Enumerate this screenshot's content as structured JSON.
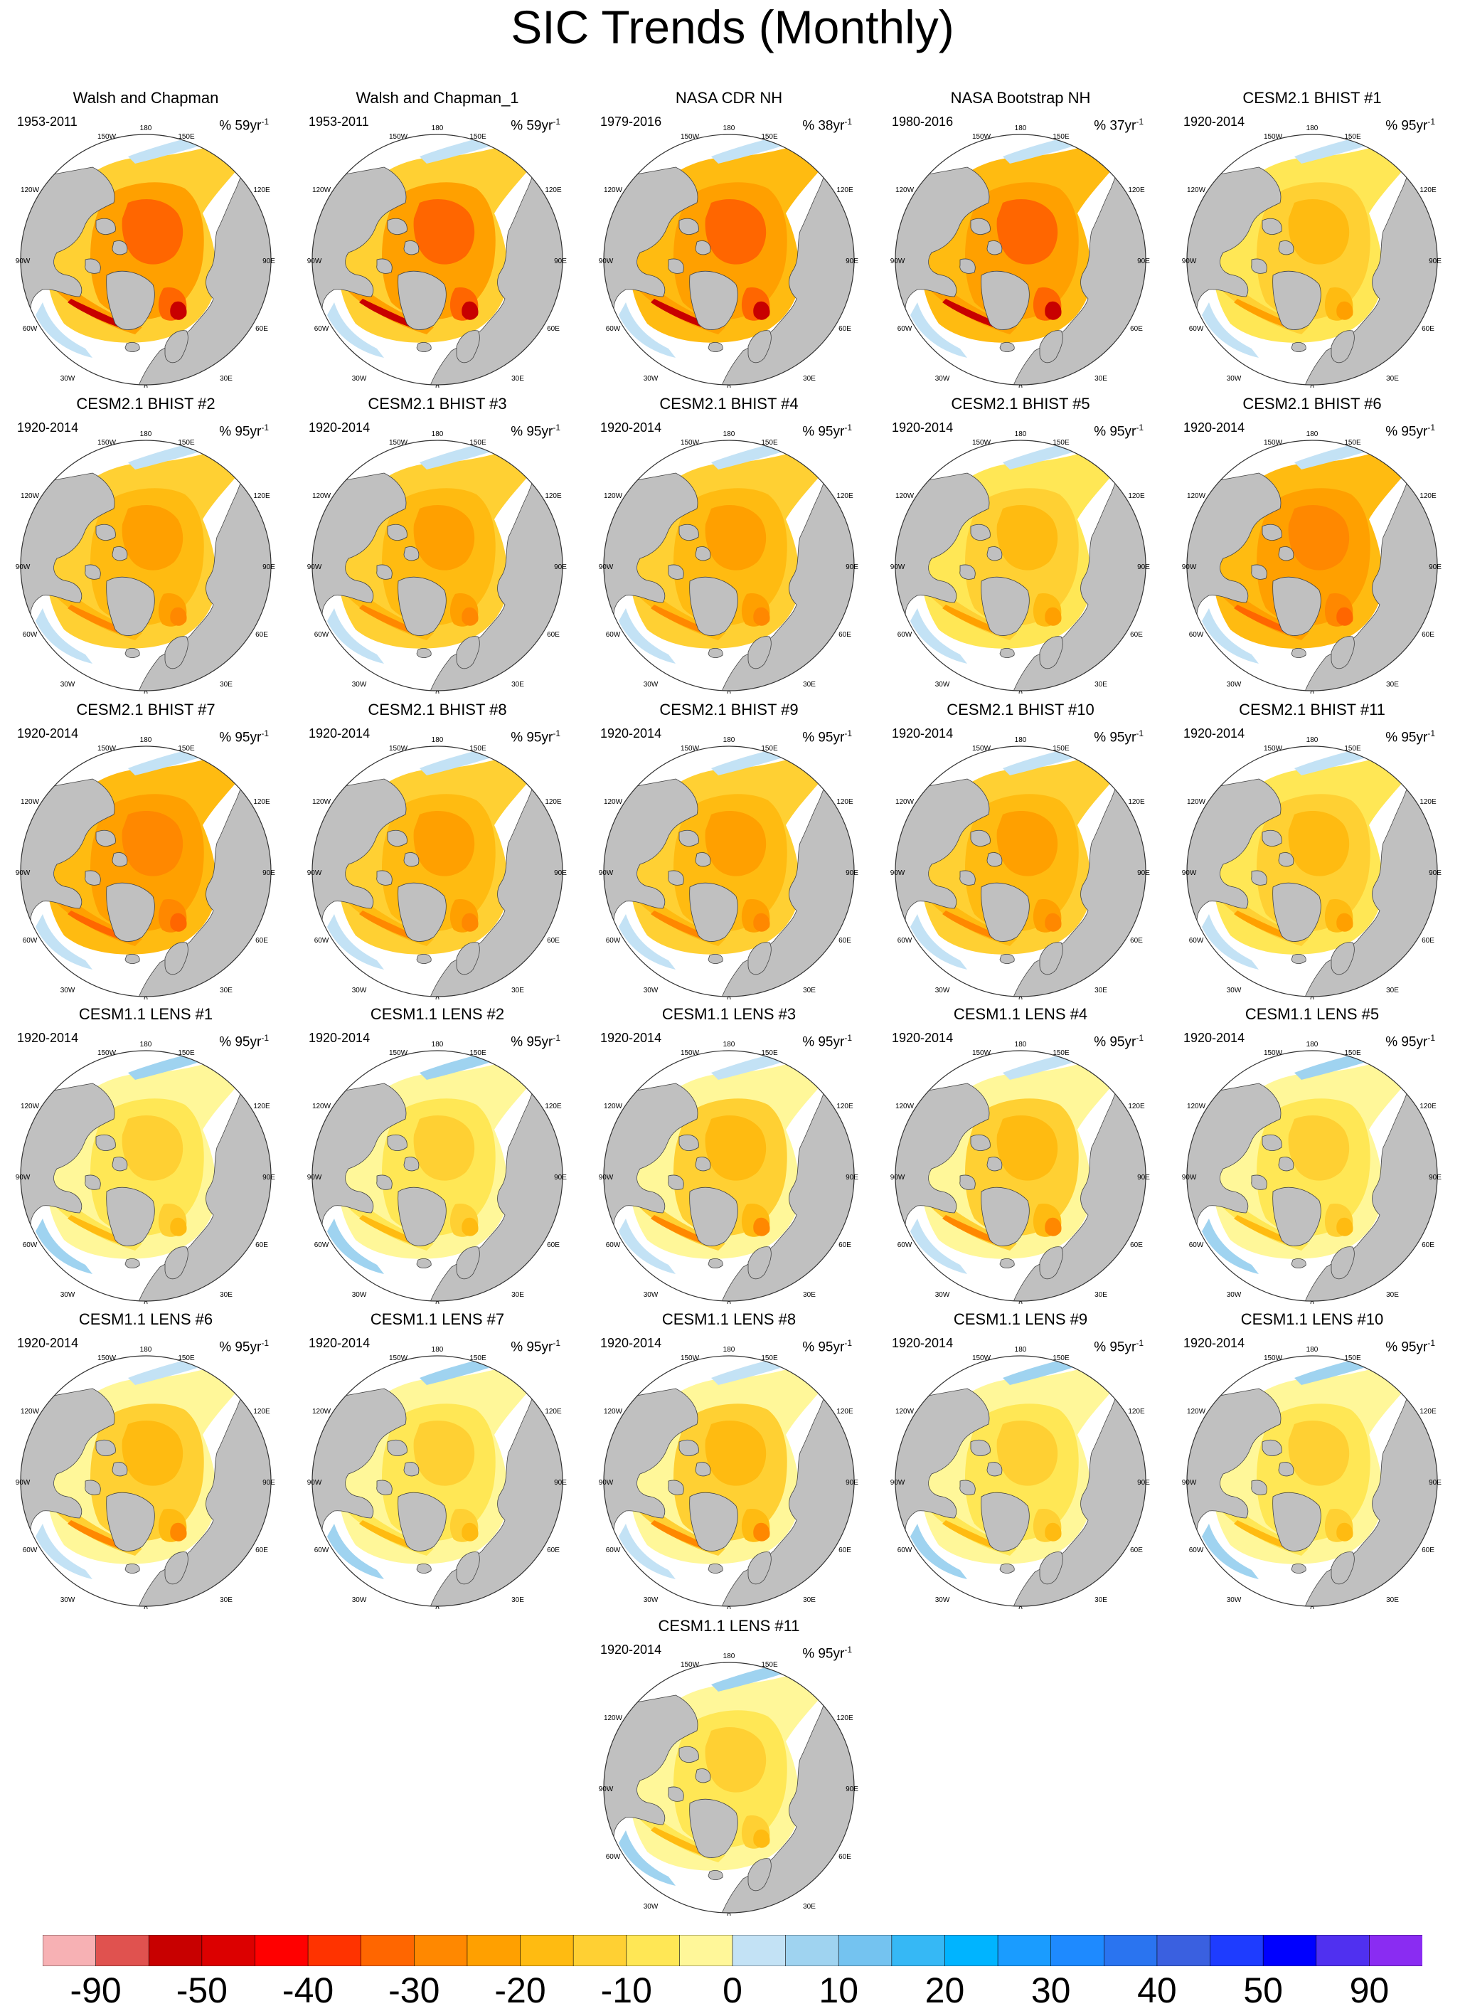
{
  "title": "SIC Trends (Monthly)",
  "panels": [
    {
      "title": "Walsh and Chapman",
      "years": "1953-2011",
      "pct": "% 59yr",
      "style": "obs1"
    },
    {
      "title": "Walsh and Chapman_1",
      "years": "1953-2011",
      "pct": "% 59yr",
      "style": "obs1"
    },
    {
      "title": "NASA CDR NH",
      "years": "1979-2016",
      "pct": "% 38yr",
      "style": "obs2"
    },
    {
      "title": "NASA Bootstrap NH",
      "years": "1980-2016",
      "pct": "% 37yr",
      "style": "obs2"
    },
    {
      "title": "CESM2.1 BHIST #1",
      "years": "1920-2014",
      "pct": "% 95yr",
      "style": "m1"
    },
    {
      "title": "CESM2.1 BHIST #2",
      "years": "1920-2014",
      "pct": "% 95yr",
      "style": "m2"
    },
    {
      "title": "CESM2.1 BHIST #3",
      "years": "1920-2014",
      "pct": "% 95yr",
      "style": "m2"
    },
    {
      "title": "CESM2.1 BHIST #4",
      "years": "1920-2014",
      "pct": "% 95yr",
      "style": "m2"
    },
    {
      "title": "CESM2.1 BHIST #5",
      "years": "1920-2014",
      "pct": "% 95yr",
      "style": "m1"
    },
    {
      "title": "CESM2.1 BHIST #6",
      "years": "1920-2014",
      "pct": "% 95yr",
      "style": "m3"
    },
    {
      "title": "CESM2.1 BHIST #7",
      "years": "1920-2014",
      "pct": "% 95yr",
      "style": "m3"
    },
    {
      "title": "CESM2.1 BHIST #8",
      "years": "1920-2014",
      "pct": "% 95yr",
      "style": "m2"
    },
    {
      "title": "CESM2.1 BHIST #9",
      "years": "1920-2014",
      "pct": "% 95yr",
      "style": "m2"
    },
    {
      "title": "CESM2.1 BHIST #10",
      "years": "1920-2014",
      "pct": "% 95yr",
      "style": "m2"
    },
    {
      "title": "CESM2.1 BHIST #11",
      "years": "1920-2014",
      "pct": "% 95yr",
      "style": "m1"
    },
    {
      "title": "CESM1.1 LENS #1",
      "years": "1920-2014",
      "pct": "% 95yr",
      "style": "l1"
    },
    {
      "title": "CESM1.1 LENS #2",
      "years": "1920-2014",
      "pct": "% 95yr",
      "style": "l1"
    },
    {
      "title": "CESM1.1 LENS #3",
      "years": "1920-2014",
      "pct": "% 95yr",
      "style": "l2"
    },
    {
      "title": "CESM1.1 LENS #4",
      "years": "1920-2014",
      "pct": "% 95yr",
      "style": "l2"
    },
    {
      "title": "CESM1.1 LENS #5",
      "years": "1920-2014",
      "pct": "% 95yr",
      "style": "l1"
    },
    {
      "title": "CESM1.1 LENS #6",
      "years": "1920-2014",
      "pct": "% 95yr",
      "style": "l2"
    },
    {
      "title": "CESM1.1 LENS #7",
      "years": "1920-2014",
      "pct": "% 95yr",
      "style": "l1"
    },
    {
      "title": "CESM1.1 LENS #8",
      "years": "1920-2014",
      "pct": "% 95yr",
      "style": "l2"
    },
    {
      "title": "CESM1.1 LENS #9",
      "years": "1920-2014",
      "pct": "% 95yr",
      "style": "l1"
    },
    {
      "title": "CESM1.1 LENS #10",
      "years": "1920-2014",
      "pct": "% 95yr",
      "style": "l1"
    },
    {
      "title": "CESM1.1 LENS #11",
      "years": "1920-2014",
      "pct": "% 95yr",
      "style": "l1"
    }
  ],
  "pct_superscript": "-1",
  "longitude_labels": [
    "180",
    "150W",
    "150E",
    "120W",
    "120E",
    "90W",
    "90E",
    "60W",
    "60E",
    "30W",
    "30E",
    "0"
  ],
  "colorbar": {
    "colors": [
      "#f7b1b4",
      "#e0524f",
      "#c80000",
      "#dc0000",
      "#ff0000",
      "#ff3300",
      "#ff6600",
      "#ff8800",
      "#ffa000",
      "#ffbb11",
      "#ffd033",
      "#ffe755",
      "#fff799",
      "#c3e2f5",
      "#9fd3f0",
      "#74c3f0",
      "#36b8f5",
      "#00b4ff",
      "#1a9cff",
      "#1e8aff",
      "#2a74f0",
      "#3a60e0",
      "#1e3cff",
      "#0000ff",
      "#5030f0",
      "#8a2cf2"
    ],
    "labels": [
      "-90",
      "-50",
      "-40",
      "-30",
      "-20",
      "-10",
      "0",
      "10",
      "20",
      "30",
      "40",
      "50",
      "90"
    ]
  },
  "land_color": "#c0c0c0",
  "ocean_color": "#ffffff"
}
